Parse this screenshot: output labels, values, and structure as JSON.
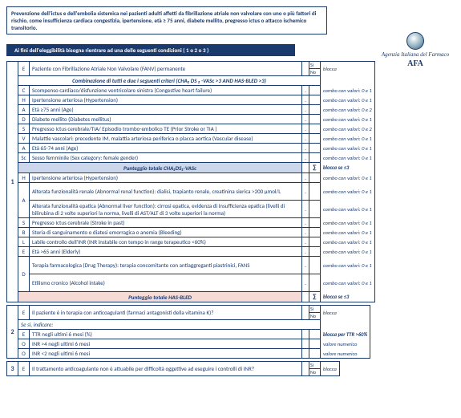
{
  "topbox": "Prevenzione dell'ictus e dell'embolia sistemica nei pazienti adulti affetti da fibrillazione atriale non valvolare con uno o più fattori di rischio, come insufficienza cardiaca congestizia, ipertensione, età ≥ 75 anni, diabete mellito, pregresso ictus o attacco ischemico transitorio.",
  "logo": {
    "line1": "Agenzia Italiana del Farmaco",
    "afa": "AFA"
  },
  "bluebar": "Ai fini dell'eleggibilità bisogna rientrare ad una delle seguenti condizioni   ( 1 o 2 o 3 )",
  "section1": {
    "num": "1",
    "rowE": {
      "code": "E",
      "desc": "Paziente con Fibrillazione Atriale Non Valvolare (FANV) permanente",
      "si": "Si",
      "no": "No",
      "note": "blocca"
    },
    "hdr": "Combinazione di tutti e due i seguenti criteri (CHA₂ DS ₂ -VASc >3 AND HAS-BLED >3)",
    "chads": [
      {
        "code": "C",
        "desc": "Scompenso cardiaco/disfunzione ventricolare sinistra (Congestive heart failure)",
        "note": "combo con valori: 0 e 1"
      },
      {
        "code": "H",
        "desc": "Ipertensione arteriosa (Hypertension)",
        "note": "combo con valori: 0 e 1"
      },
      {
        "code": "A",
        "desc": "Età ≥75 anni (Age)",
        "note": "combo con valori: 0 e 2"
      },
      {
        "code": "D",
        "desc": "Diabete mellito (Diabetes mellitus)",
        "note": "combo con valori: 0 e 1"
      },
      {
        "code": "S",
        "desc": "Pregresso Ictus cerebrale/TIA/ Episodio trombo-embolico TE (Prior Stroke or TIA )",
        "note": "combo con valori: 0 e 2"
      },
      {
        "code": "V",
        "desc": "Malattie vascolari: precedente IM, malattia arteriosa periferica o placca aortica (Vascular disease)",
        "note": "combo con valori: 0 e 1"
      },
      {
        "code": "A",
        "desc": "Età 65-74 anni  (Age)",
        "note": "combo con valori: 0 e 1"
      },
      {
        "code": "Sc",
        "desc": "Sesso femminile (Sex category: female gender)",
        "note": "combo con valori: 0 e 1"
      }
    ],
    "chads_total": {
      "label": "Punteggio totale CHA₂DS₂-VASc",
      "sigma": "∑",
      "note": "blocca se ≤3"
    },
    "hasbled": [
      {
        "code": "H",
        "desc": "Ipertensione arteriosa (Hypertension)",
        "note": "combo con valori: 0 e 1"
      },
      {
        "code": "A",
        "desc1": "Alterata funzionalità renale (Abnormal renal function): dialisi, trapianto renale, creatinina sierica >200 µmol/L",
        "note1": "combo con valori: 0 e 1",
        "desc2": "Alterata funzionalità epatica (Abnormal liver function): cirrosi epatica, evidenza di insufficienza epatica (livelli di bilirubina di 2 volte superiori la norma, livelli di AST/ALT di 3 volte superiori la norma)",
        "note2": "combo con valori: 0 e 1"
      },
      {
        "code": "S",
        "desc": "Pregresso Ictus cerebrale (Stroke in past)",
        "note": "combo con valori: 0 e 1"
      },
      {
        "code": "B",
        "desc": "Storia di sanguinamento o diatesi emorragica o anemia (Bleeding)",
        "note": "combo con valori: 0 e 1"
      },
      {
        "code": "L",
        "desc": "Labile controllo dell'INR (INR instabile con tempo in range terapeutico <60%)",
        "note": "combo con valori: 0 e 1"
      },
      {
        "code": "E",
        "desc": "Età >65 anni (Elderly)",
        "note": "combo con valori: 0 e 1"
      },
      {
        "code": "D",
        "desc1": "Terapia farmacologica (Drug Therapy): terapia concomitante con antiaggreganti piastrinici, FANS",
        "note1": "combo con valori: 0 e 1",
        "desc2": "Etilismo cronico (Alcohol intake)",
        "note2": "combo con valori: 0 e 1"
      }
    ],
    "hasbled_total": {
      "label": "Punteggio totale HAS-BLED",
      "sigma": "∑",
      "note": "blocca se ≤3"
    }
  },
  "section2": {
    "num": "2",
    "rowE": {
      "code": "E",
      "desc": "Il paziente è in terapia con anticoagulanti (farmaci antagonisti della vitamina K)?",
      "si": "Si",
      "no": "No",
      "note": "blocca"
    },
    "sesi": "Se sì, indicare:",
    "rows": [
      {
        "code": "E",
        "desc": "TTR negli ultimi 6 mesi (%)",
        "note": "blocca per TTR >60%"
      },
      {
        "code": "O",
        "desc": "INR >4 negli ultimi 6 mesi",
        "note": "valore numerico"
      },
      {
        "code": "O",
        "desc": "INR <2 negli ultimi 6 mesi",
        "note": "valore numerico"
      }
    ]
  },
  "section3": {
    "num": "3",
    "row": {
      "code": "E",
      "desc": "Il trattamento anticoagulante non è attuabile per difficoltà oggettive ad eseguire i controlli di INR?",
      "si": "Si",
      "no": "No",
      "note": "blocca"
    }
  }
}
